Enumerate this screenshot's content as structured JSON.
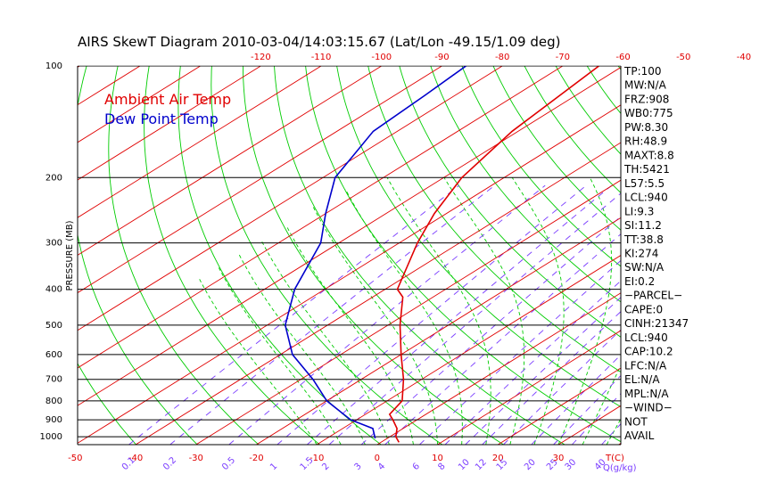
{
  "chart_data": {
    "type": "line",
    "title": "AIRS SkewT Diagram 2010-03-04/14:03:15.67 (Lat/Lon -49.15/1.09 deg)",
    "ylabel": "PRESSURE (MB)",
    "y_scale": "log",
    "ylim": [
      1050,
      100
    ],
    "pressure_ticks": [
      100,
      200,
      300,
      400,
      500,
      600,
      700,
      800,
      900,
      1000
    ],
    "bottom_temp_ticks": [
      -50,
      -40,
      -30,
      -20,
      -10,
      0,
      10,
      20,
      30
    ],
    "bottom_temp_unit": "T(C)",
    "top_temp_ticks": [
      -120,
      -110,
      -100,
      -90,
      -80,
      -70,
      -60,
      -50,
      -40
    ],
    "mixing_ratio_ticks": [
      "0.1",
      "0.2",
      "0.5",
      "1",
      "1.5",
      "2",
      "3",
      "4",
      "6",
      "8",
      "10",
      "12",
      "15",
      "20",
      "25",
      "30",
      "40"
    ],
    "mixing_ratio_unit": "Q(g/kg)",
    "grid": true,
    "legend_position": "top-left",
    "series": [
      {
        "name": "Ambient Air Temp",
        "color": "#e00000",
        "points": [
          {
            "p": 1035,
            "t": 3
          },
          {
            "p": 1000,
            "t": 1
          },
          {
            "p": 950,
            "t": -1
          },
          {
            "p": 900,
            "t": -4
          },
          {
            "p": 870,
            "t": -6
          },
          {
            "p": 800,
            "t": -7.5
          },
          {
            "p": 700,
            "t": -13
          },
          {
            "p": 600,
            "t": -20
          },
          {
            "p": 500,
            "t": -28
          },
          {
            "p": 420,
            "t": -35
          },
          {
            "p": 400,
            "t": -38
          },
          {
            "p": 300,
            "t": -47
          },
          {
            "p": 250,
            "t": -52
          },
          {
            "p": 200,
            "t": -57
          },
          {
            "p": 150,
            "t": -61
          },
          {
            "p": 100,
            "t": -64
          }
        ]
      },
      {
        "name": "Dew Point Temp",
        "color": "#0000cc",
        "points": [
          {
            "p": 1010,
            "t": -2
          },
          {
            "p": 950,
            "t": -5
          },
          {
            "p": 900,
            "t": -11
          },
          {
            "p": 800,
            "t": -20
          },
          {
            "p": 700,
            "t": -28
          },
          {
            "p": 600,
            "t": -38
          },
          {
            "p": 500,
            "t": -47
          },
          {
            "p": 400,
            "t": -55
          },
          {
            "p": 300,
            "t": -63
          },
          {
            "p": 250,
            "t": -70
          },
          {
            "p": 200,
            "t": -78
          },
          {
            "p": 150,
            "t": -84
          },
          {
            "p": 120,
            "t": -85
          },
          {
            "p": 100,
            "t": -86
          }
        ]
      }
    ]
  },
  "indices": [
    "TP:100",
    "MW:N/A",
    "FRZ:908",
    "WB0:775",
    "PW:8.30",
    "RH:48.9",
    "MAXT:8.8",
    "TH:5421",
    "L57:5.5",
    "LCL:940",
    "LI:9.3",
    "SI:11.2",
    "TT:38.8",
    "KI:274",
    "SW:N/A",
    "EI:0.2",
    "−PARCEL−",
    "CAPE:0",
    "CINH:21347",
    "LCL:940",
    "CAP:10.2",
    "LFC:N/A",
    "EL:N/A",
    "MPL:N/A",
    "−WIND−",
    "NOT",
    "AVAIL"
  ],
  "colors": {
    "isotherm": "#e00000",
    "dry_adiabat": "#00cc00",
    "moist_adiabat": "#00cc00",
    "mixing_ratio": "#7a3cff",
    "isobar": "#000000",
    "label": "#e00000"
  }
}
